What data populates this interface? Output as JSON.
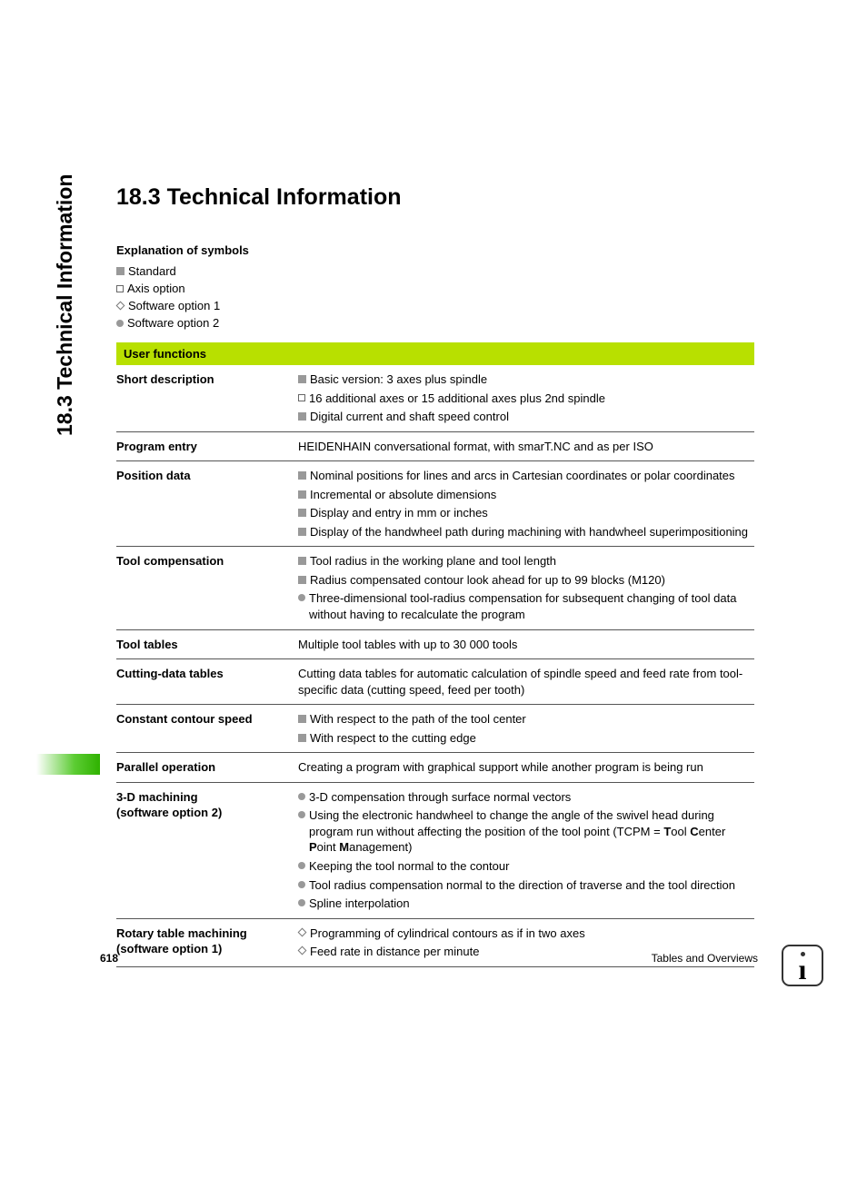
{
  "side_title": "18.3 Technical Information",
  "heading": "18.3 Technical Information",
  "explanation": {
    "title": "Explanation of symbols",
    "items": [
      {
        "sym": "sq-filled",
        "text": "Standard"
      },
      {
        "sym": "sq-hollow",
        "text": "Axis option"
      },
      {
        "sym": "dia-hollow",
        "text": "Software option 1"
      },
      {
        "sym": "circ",
        "text": "Software option 2"
      }
    ]
  },
  "table": {
    "header": "User functions",
    "rows": [
      {
        "label": "Short description",
        "items": [
          {
            "sym": "sq-filled",
            "text": "Basic version: 3 axes plus spindle"
          },
          {
            "sym": "sq-hollow",
            "text": "16 additional axes or 15 additional axes plus 2nd spindle"
          },
          {
            "sym": "sq-filled",
            "text": "Digital current and shaft speed control"
          }
        ]
      },
      {
        "label": "Program entry",
        "plain": "HEIDENHAIN conversational format, with smarT.NC and as per ISO"
      },
      {
        "label": "Position data",
        "items": [
          {
            "sym": "sq-filled",
            "text": "Nominal positions for lines and arcs in Cartesian coordinates or polar coordinates"
          },
          {
            "sym": "sq-filled",
            "text": "Incremental or absolute dimensions"
          },
          {
            "sym": "sq-filled",
            "text": "Display and entry in mm or inches"
          },
          {
            "sym": "sq-filled",
            "text": "Display of the handwheel path during machining with handwheel superimpositioning"
          }
        ]
      },
      {
        "label": "Tool compensation",
        "items": [
          {
            "sym": "sq-filled",
            "text": "Tool radius in the working plane and tool length"
          },
          {
            "sym": "sq-filled",
            "text": "Radius compensated contour look ahead for up to 99 blocks (M120)"
          },
          {
            "sym": "circ",
            "text": "Three-dimensional tool-radius compensation for subsequent changing of tool data without having to recalculate the program"
          }
        ]
      },
      {
        "label": "Tool tables",
        "plain": "Multiple tool tables with up to 30 000 tools"
      },
      {
        "label": "Cutting-data tables",
        "plain": "Cutting data tables for automatic calculation of spindle speed and feed rate from tool-specific data (cutting speed, feed per tooth)"
      },
      {
        "label": "Constant contour speed",
        "items": [
          {
            "sym": "sq-filled",
            "text": "With respect to the path of the tool center"
          },
          {
            "sym": "sq-filled",
            "text": "With respect to the cutting edge"
          }
        ]
      },
      {
        "label": "Parallel operation",
        "plain": "Creating a program with graphical support while another program is being run"
      },
      {
        "label": "3-D machining\n(software option 2)",
        "items": [
          {
            "sym": "circ",
            "text": "3-D compensation through surface normal vectors"
          },
          {
            "sym": "circ",
            "html": "Using the electronic handwheel to change the angle of the swivel head during program run without affecting the position of the tool point (TCPM = <b>T</b>ool <b>C</b>enter <b>P</b>oint <b>M</b>anagement)"
          },
          {
            "sym": "circ",
            "text": "Keeping the tool normal to the contour"
          },
          {
            "sym": "circ",
            "text": "Tool radius compensation normal to the direction of traverse and the tool direction"
          },
          {
            "sym": "circ",
            "text": "Spline interpolation"
          }
        ]
      },
      {
        "label": "Rotary table machining\n(software option 1)",
        "items": [
          {
            "sym": "dia-hollow",
            "text": "Programming of cylindrical contours as if in two axes"
          },
          {
            "sym": "dia-hollow",
            "text": "Feed rate in distance per minute"
          }
        ]
      }
    ]
  },
  "footer": {
    "page": "618",
    "section": "Tables and Overviews"
  }
}
